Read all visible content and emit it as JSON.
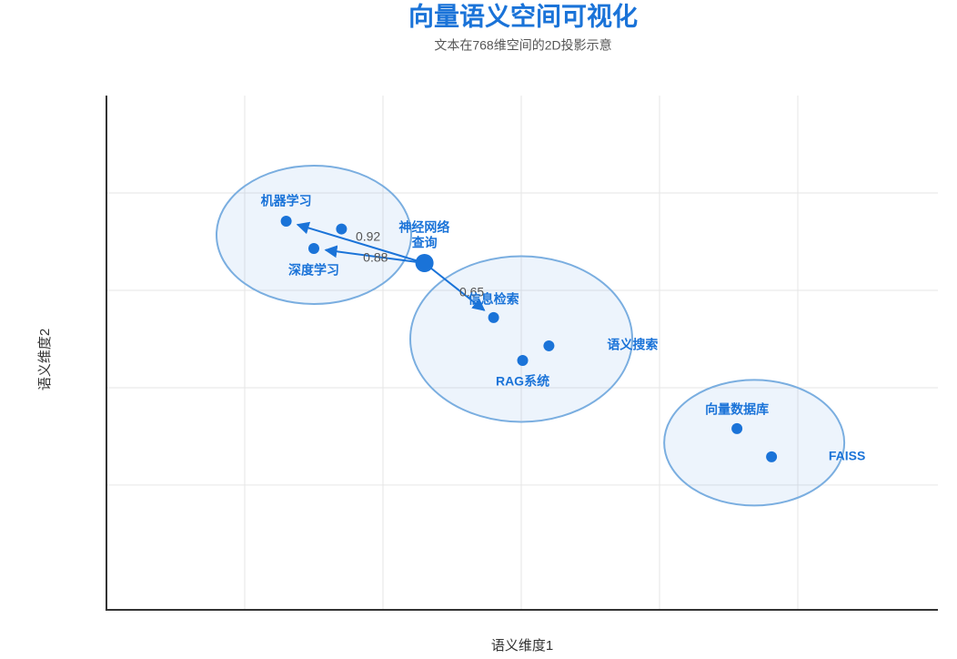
{
  "chart_data": {
    "type": "scatter",
    "title": "向量语义空间可视化",
    "subtitle": "文本在768维空间的2D投影示意",
    "x_label": "语义维度1",
    "y_label": "语义维度2",
    "labels": [
      "机器学习",
      "神经网络",
      "深度学习",
      "查询",
      "信息检索",
      "语义搜索",
      "RAG系统",
      "向量数据库",
      "FAISS"
    ],
    "x": [
      1.3,
      1.7,
      1.5,
      2.3,
      2.8,
      3.2,
      3.01,
      4.56,
      4.81
    ],
    "y": [
      3.71,
      3.63,
      3.43,
      3.28,
      2.72,
      2.43,
      2.28,
      1.58,
      1.29
    ],
    "color": "#1a73d8",
    "similarities": [
      0.92,
      0.88,
      0.65
    ],
    "xlim": [
      0,
      6
    ],
    "xticks": [
      1,
      2,
      3,
      4,
      5
    ],
    "ylim": [
      -0.3,
      5
    ],
    "yticks": [
      1,
      2,
      3,
      4
    ],
    "grid": true
  }
}
